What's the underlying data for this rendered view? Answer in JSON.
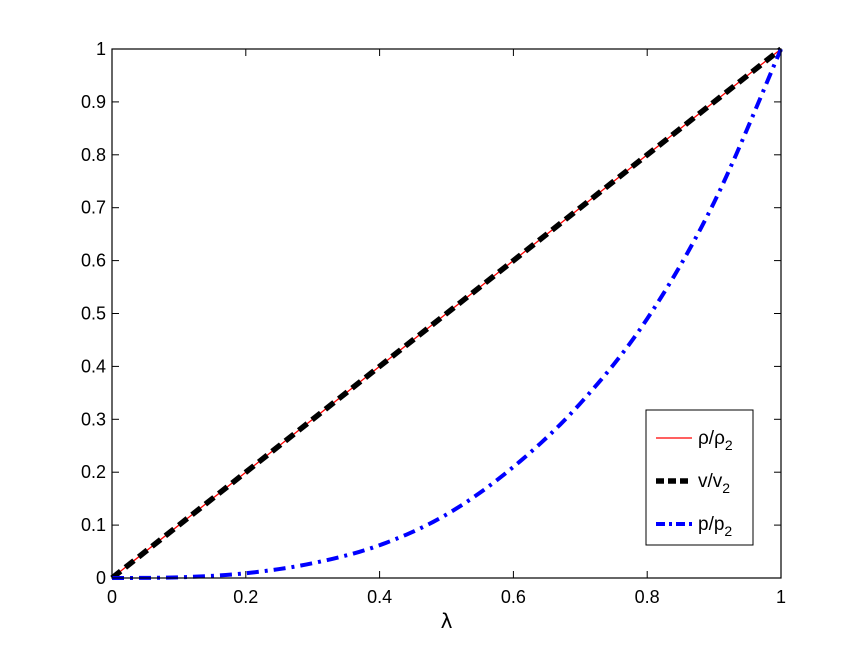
{
  "chart_data": {
    "type": "line",
    "title": "",
    "xlabel": "λ",
    "ylabel": "",
    "xlim": [
      0,
      1
    ],
    "ylim": [
      0,
      1
    ],
    "grid": false,
    "legend_position": "bottom-right",
    "xticks": [
      0,
      0.2,
      0.4,
      0.6,
      0.8,
      1
    ],
    "xtick_labels": [
      "0",
      "0.2",
      "0.4",
      "0.6",
      "0.8",
      "1"
    ],
    "yticks": [
      0,
      0.1,
      0.2,
      0.3,
      0.4,
      0.5,
      0.6,
      0.7,
      0.8,
      0.9,
      1
    ],
    "ytick_labels": [
      "0",
      "0.1",
      "0.2",
      "0.3",
      "0.4",
      "0.5",
      "0.6",
      "0.7",
      "0.8",
      "0.9",
      "1"
    ],
    "x": [
      0,
      0.1,
      0.2,
      0.3,
      0.4,
      0.5,
      0.6,
      0.7,
      0.8,
      0.9,
      1
    ],
    "series": [
      {
        "name": "ρ/ρ",
        "name_sub": "2",
        "color": "#ff0000",
        "style": "solid",
        "values": [
          0,
          0.1,
          0.2,
          0.3,
          0.4,
          0.5,
          0.6,
          0.7,
          0.8,
          0.9,
          1
        ]
      },
      {
        "name": "v/v",
        "name_sub": "2",
        "color": "#000000",
        "style": "dashed",
        "values": [
          0,
          0.1,
          0.2,
          0.3,
          0.4,
          0.5,
          0.6,
          0.7,
          0.8,
          0.9,
          1
        ]
      },
      {
        "name": "p/p",
        "name_sub": "2",
        "color": "#0000ff",
        "style": "dash-dot",
        "values": [
          0,
          0.0013,
          0.009,
          0.028,
          0.062,
          0.12,
          0.21,
          0.33,
          0.49,
          0.71,
          1
        ]
      }
    ]
  }
}
